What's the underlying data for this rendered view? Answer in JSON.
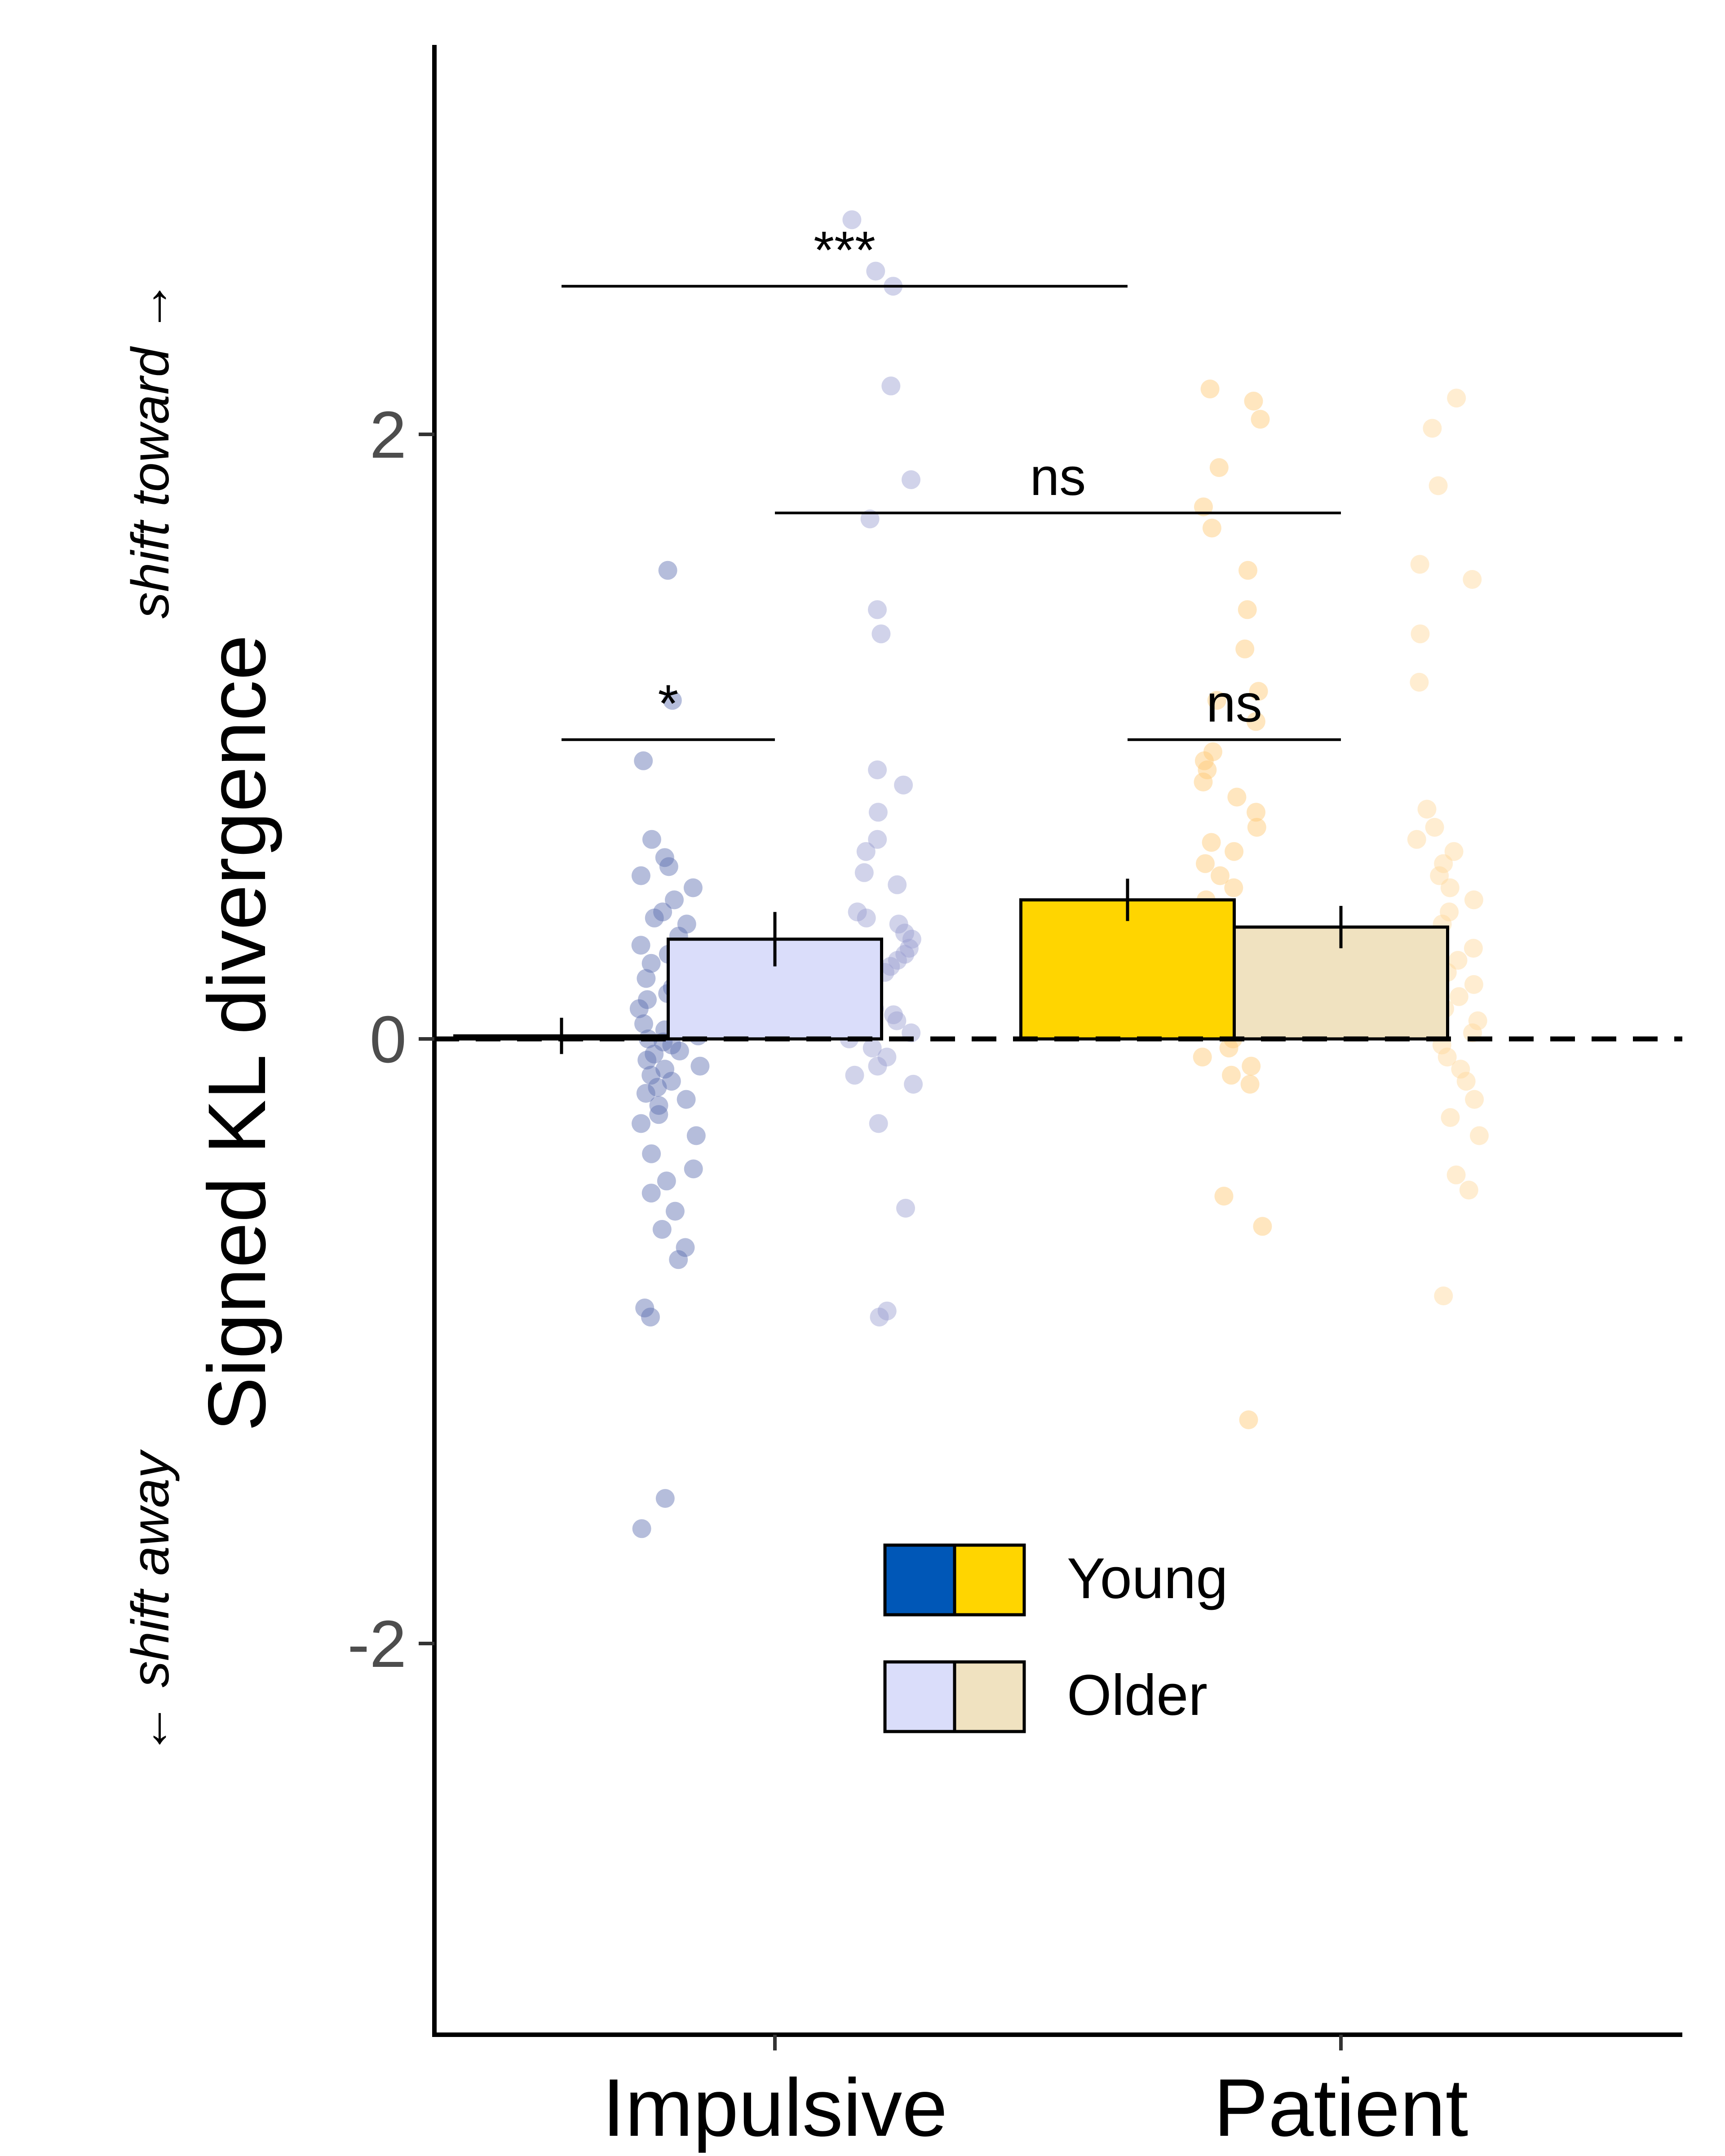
{
  "chart_data": {
    "type": "bar",
    "xlabel": "",
    "ylabel": "Signed KL divergence",
    "ylabel_direction_up": "shift toward →",
    "ylabel_direction_down": "← shift away",
    "ylim": [
      -3.3,
      3.3
    ],
    "yticks": [
      "-2",
      "0",
      "2"
    ],
    "categories": [
      "Impulsive",
      "Patient"
    ],
    "reference_line": {
      "y": 0,
      "style": "dashed"
    },
    "grid": false,
    "legend": {
      "position": "bottom-center",
      "entries": [
        {
          "label": "Young",
          "colors": [
            "#0057B7",
            "#FFD500"
          ]
        },
        {
          "label": "Older",
          "colors": [
            "#DADDFA",
            "#F0E2C0"
          ]
        }
      ]
    },
    "bars": [
      {
        "category": "Impulsive",
        "group": "Young",
        "value": 0.01,
        "error": 0.06,
        "fill": "#0057B7",
        "point_color": "#5B6CB0"
      },
      {
        "category": "Impulsive",
        "group": "Older",
        "value": 0.33,
        "error": 0.09,
        "fill": "#DADDFA",
        "point_color": "#9A9DD0"
      },
      {
        "category": "Patient",
        "group": "Young",
        "value": 0.46,
        "error": 0.07,
        "fill": "#FFD500",
        "point_color": "#FFC870"
      },
      {
        "category": "Patient",
        "group": "Older",
        "value": 0.37,
        "error": 0.07,
        "fill": "#F0E2C0",
        "point_color": "#FFD79A"
      }
    ],
    "significance": [
      {
        "text": "***",
        "from": "Impulsive Young",
        "to": "Patient Young",
        "y": 2.49
      },
      {
        "text": "ns",
        "from": "Impulsive Older",
        "to": "Patient Older",
        "y": 1.74
      },
      {
        "text": "*",
        "from": "Impulsive Young",
        "to": "Impulsive Older",
        "y": 0.99
      },
      {
        "text": "ns",
        "from": "Patient Young",
        "to": "Patient Older",
        "y": 0.99
      }
    ],
    "points": {
      "Impulsive Young": [
        1.55,
        1.12,
        0.92,
        0.66,
        0.6,
        0.57,
        0.54,
        0.5,
        0.46,
        0.42,
        0.4,
        0.38,
        0.34,
        0.31,
        0.28,
        0.25,
        0.22,
        0.2,
        0.17,
        0.15,
        0.13,
        0.1,
        0.08,
        0.06,
        0.05,
        0.03,
        0.01,
        0.0,
        -0.01,
        -0.02,
        -0.04,
        -0.05,
        -0.07,
        -0.09,
        -0.1,
        -0.12,
        -0.14,
        -0.16,
        -0.18,
        -0.2,
        -0.22,
        -0.25,
        -0.28,
        -0.32,
        -0.38,
        -0.43,
        -0.47,
        -0.51,
        -0.57,
        -0.63,
        -0.69,
        -0.73,
        -0.89,
        -0.92,
        -1.52,
        -1.62
      ],
      "Impulsive Older": [
        2.71,
        2.54,
        2.49,
        2.16,
        1.85,
        1.72,
        1.42,
        1.34,
        0.89,
        0.84,
        0.75,
        0.66,
        0.62,
        0.55,
        0.51,
        0.42,
        0.4,
        0.38,
        0.35,
        0.33,
        0.3,
        0.28,
        0.26,
        0.24,
        0.22,
        0.2,
        0.18,
        0.15,
        0.12,
        0.1,
        0.08,
        0.06,
        0.04,
        0.02,
        0.0,
        -0.03,
        -0.06,
        -0.09,
        -0.12,
        -0.15,
        -0.28,
        -0.56,
        -0.9,
        -0.92
      ],
      "Patient Young": [
        2.15,
        2.11,
        2.05,
        1.89,
        1.76,
        1.69,
        1.55,
        1.42,
        1.29,
        1.15,
        1.12,
        1.05,
        0.95,
        0.92,
        0.89,
        0.85,
        0.8,
        0.75,
        0.7,
        0.65,
        0.62,
        0.58,
        0.54,
        0.5,
        0.46,
        0.42,
        0.38,
        0.34,
        0.3,
        0.27,
        0.24,
        0.2,
        0.16,
        0.12,
        0.08,
        0.04,
        0.0,
        -0.03,
        -0.06,
        -0.09,
        -0.12,
        -0.15,
        -0.52,
        -0.62,
        -1.26
      ],
      "Patient Older": [
        2.12,
        2.02,
        1.83,
        1.57,
        1.52,
        1.34,
        1.18,
        0.76,
        0.7,
        0.66,
        0.62,
        0.58,
        0.54,
        0.5,
        0.46,
        0.42,
        0.38,
        0.34,
        0.3,
        0.26,
        0.22,
        0.18,
        0.14,
        0.1,
        0.06,
        0.02,
        -0.02,
        -0.06,
        -0.1,
        -0.14,
        -0.2,
        -0.26,
        -0.32,
        -0.45,
        -0.5,
        -0.85
      ]
    }
  }
}
